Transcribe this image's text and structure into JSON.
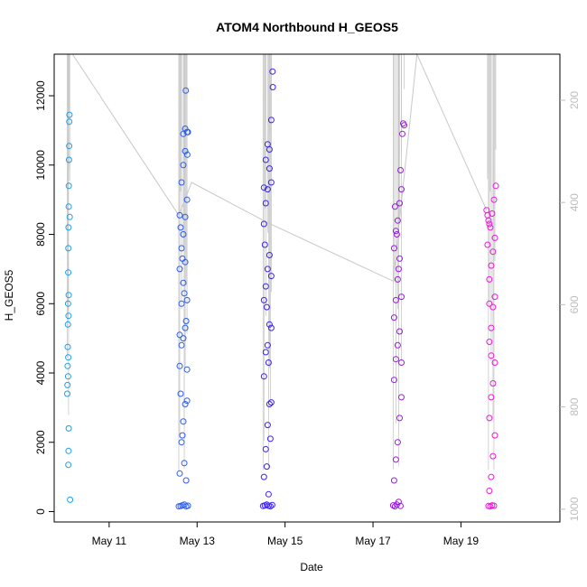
{
  "chart_data": {
    "type": "scatter",
    "title": "ATOM4 Northbound H_GEOS5",
    "xlabel": "Date",
    "ylabel": "H_GEOS5",
    "xlim": [
      "2018-05-09T18:00",
      "2018-05-21T06:00"
    ],
    "ylim": [
      -300,
      13200
    ],
    "x_ticks": [
      {
        "date": "2018-05-11",
        "label": "May 11"
      },
      {
        "date": "2018-05-13",
        "label": "May 13"
      },
      {
        "date": "2018-05-15",
        "label": "May 15"
      },
      {
        "date": "2018-05-17",
        "label": "May 17"
      },
      {
        "date": "2018-05-19",
        "label": "May 19"
      }
    ],
    "y_ticks": [
      0,
      2000,
      4000,
      6000,
      8000,
      10000,
      12000
    ],
    "right_axis": {
      "note": "secondary pressure axis drawn in light grey, reversed",
      "ticks": [
        200,
        400,
        600,
        800,
        1000
      ],
      "lim": [
        1025,
        110
      ],
      "color": "#bdbdbd"
    },
    "grid": false,
    "legend": "none",
    "line_color": "#c8c8c8",
    "color_gradient": [
      "#1fb4f0",
      "#1e55e8",
      "#3a10f0",
      "#a012e0",
      "#ff10d8"
    ],
    "flights": [
      {
        "color": "#1e9eea",
        "points": [
          [
            "2018-05-10T01:10",
            3400
          ],
          [
            "2018-05-10T01:15",
            3650
          ],
          [
            "2018-05-10T01:20",
            4200
          ],
          [
            "2018-05-10T01:25",
            4750
          ],
          [
            "2018-05-10T01:30",
            5400
          ],
          [
            "2018-05-10T01:35",
            6000
          ],
          [
            "2018-05-10T01:40",
            6900
          ],
          [
            "2018-05-10T01:45",
            7600
          ],
          [
            "2018-05-10T01:50",
            8200
          ],
          [
            "2018-05-10T01:55",
            8800
          ],
          [
            "2018-05-10T02:00",
            9400
          ],
          [
            "2018-05-10T02:05",
            10150
          ],
          [
            "2018-05-10T02:10",
            10550
          ],
          [
            "2018-05-10T02:15",
            11250
          ],
          [
            "2018-05-10T02:20",
            11450
          ],
          [
            "2018-05-10T02:30",
            8500
          ],
          [
            "2018-05-10T02:40",
            340
          ],
          [
            "2018-05-10T01:45",
            1350
          ],
          [
            "2018-05-10T01:50",
            1750
          ],
          [
            "2018-05-10T01:55",
            2400
          ],
          [
            "2018-05-10T01:35",
            3900
          ],
          [
            "2018-05-10T01:40",
            4450
          ],
          [
            "2018-05-10T01:50",
            5650
          ],
          [
            "2018-05-10T01:55",
            6250
          ]
        ]
      },
      {
        "color": "#2a5cf0",
        "points": [
          [
            "2018-05-12T14:00",
            150
          ],
          [
            "2018-05-12T15:00",
            160
          ],
          [
            "2018-05-12T16:00",
            180
          ],
          [
            "2018-05-12T17:00",
            200
          ],
          [
            "2018-05-12T18:00",
            150
          ],
          [
            "2018-05-12T19:00",
            170
          ],
          [
            "2018-05-12T14:30",
            1100
          ],
          [
            "2018-05-12T15:30",
            2000
          ],
          [
            "2018-05-12T16:30",
            2600
          ],
          [
            "2018-05-12T17:30",
            3100
          ],
          [
            "2018-05-12T18:30",
            3200
          ],
          [
            "2018-05-12T14:30",
            4200
          ],
          [
            "2018-05-12T15:30",
            4800
          ],
          [
            "2018-05-12T16:30",
            5000
          ],
          [
            "2018-05-12T17:30",
            5300
          ],
          [
            "2018-05-12T18:30",
            4100
          ],
          [
            "2018-05-12T14:30",
            5100
          ],
          [
            "2018-05-12T15:30",
            6000
          ],
          [
            "2018-05-12T16:30",
            6600
          ],
          [
            "2018-05-12T17:30",
            7200
          ],
          [
            "2018-05-12T18:30",
            6100
          ],
          [
            "2018-05-12T14:30",
            7000
          ],
          [
            "2018-05-12T15:30",
            7600
          ],
          [
            "2018-05-12T16:30",
            8000
          ],
          [
            "2018-05-12T17:30",
            8500
          ],
          [
            "2018-05-12T18:30",
            9000
          ],
          [
            "2018-05-12T14:30",
            8550
          ],
          [
            "2018-05-12T15:30",
            9500
          ],
          [
            "2018-05-12T16:30",
            10000
          ],
          [
            "2018-05-12T17:30",
            10400
          ],
          [
            "2018-05-12T18:30",
            10950
          ],
          [
            "2018-05-12T16:30",
            10900
          ],
          [
            "2018-05-12T17:30",
            11050
          ],
          [
            "2018-05-12T17:50",
            12150
          ],
          [
            "2018-05-12T18:40",
            10300
          ],
          [
            "2018-05-12T19:00",
            10950
          ],
          [
            "2018-05-12T15:00",
            8200
          ],
          [
            "2018-05-12T16:00",
            7300
          ],
          [
            "2018-05-12T17:00",
            6300
          ],
          [
            "2018-05-12T18:00",
            5500
          ],
          [
            "2018-05-12T15:00",
            3400
          ],
          [
            "2018-05-12T16:00",
            2200
          ],
          [
            "2018-05-12T17:00",
            1400
          ],
          [
            "2018-05-12T18:00",
            900
          ]
        ]
      },
      {
        "color": "#3b22f2",
        "points": [
          [
            "2018-05-14T12:00",
            160
          ],
          [
            "2018-05-14T13:00",
            180
          ],
          [
            "2018-05-14T14:00",
            200
          ],
          [
            "2018-05-14T15:00",
            170
          ],
          [
            "2018-05-14T16:00",
            150
          ],
          [
            "2018-05-14T17:00",
            190
          ],
          [
            "2018-05-14T12:30",
            1000
          ],
          [
            "2018-05-14T13:30",
            1800
          ],
          [
            "2018-05-14T14:30",
            2500
          ],
          [
            "2018-05-14T15:30",
            3100
          ],
          [
            "2018-05-14T16:30",
            3150
          ],
          [
            "2018-05-14T12:30",
            3900
          ],
          [
            "2018-05-14T13:30",
            4600
          ],
          [
            "2018-05-14T14:30",
            4800
          ],
          [
            "2018-05-14T15:30",
            5400
          ],
          [
            "2018-05-14T16:30",
            5300
          ],
          [
            "2018-05-14T12:30",
            6100
          ],
          [
            "2018-05-14T13:30",
            6500
          ],
          [
            "2018-05-14T14:30",
            7000
          ],
          [
            "2018-05-14T15:30",
            7400
          ],
          [
            "2018-05-14T16:30",
            6800
          ],
          [
            "2018-05-14T12:30",
            8300
          ],
          [
            "2018-05-14T13:30",
            8900
          ],
          [
            "2018-05-14T14:30",
            9300
          ],
          [
            "2018-05-14T15:30",
            9900
          ],
          [
            "2018-05-14T16:30",
            9500
          ],
          [
            "2018-05-14T12:30",
            9350
          ],
          [
            "2018-05-14T13:30",
            10150
          ],
          [
            "2018-05-14T14:30",
            10600
          ],
          [
            "2018-05-14T15:30",
            10450
          ],
          [
            "2018-05-14T16:30",
            11300
          ],
          [
            "2018-05-14T17:10",
            12700
          ],
          [
            "2018-05-14T17:20",
            12250
          ],
          [
            "2018-05-14T13:00",
            7700
          ],
          [
            "2018-05-14T14:00",
            5900
          ],
          [
            "2018-05-14T15:00",
            4300
          ],
          [
            "2018-05-14T16:00",
            2100
          ],
          [
            "2018-05-14T14:00",
            1300
          ],
          [
            "2018-05-14T15:00",
            500
          ]
        ]
      },
      {
        "color": "#9a18e6",
        "points": [
          [
            "2018-05-17T11:00",
            180
          ],
          [
            "2018-05-17T12:00",
            150
          ],
          [
            "2018-05-17T13:00",
            200
          ],
          [
            "2018-05-17T14:00",
            280
          ],
          [
            "2018-05-17T15:00",
            160
          ],
          [
            "2018-05-17T11:30",
            900
          ],
          [
            "2018-05-17T12:30",
            1500
          ],
          [
            "2018-05-17T13:30",
            2000
          ],
          [
            "2018-05-17T14:30",
            2700
          ],
          [
            "2018-05-17T15:30",
            3300
          ],
          [
            "2018-05-17T11:30",
            3800
          ],
          [
            "2018-05-17T12:30",
            4400
          ],
          [
            "2018-05-17T13:30",
            4800
          ],
          [
            "2018-05-17T14:30",
            5200
          ],
          [
            "2018-05-17T15:30",
            4300
          ],
          [
            "2018-05-17T11:30",
            5600
          ],
          [
            "2018-05-17T12:30",
            6100
          ],
          [
            "2018-05-17T13:30",
            6700
          ],
          [
            "2018-05-17T14:30",
            7300
          ],
          [
            "2018-05-17T15:30",
            6200
          ],
          [
            "2018-05-17T11:30",
            7600
          ],
          [
            "2018-05-17T12:30",
            8100
          ],
          [
            "2018-05-17T13:30",
            8400
          ],
          [
            "2018-05-17T14:30",
            8900
          ],
          [
            "2018-05-17T15:30",
            9300
          ],
          [
            "2018-05-17T16:00",
            10900
          ],
          [
            "2018-05-17T16:30",
            11200
          ],
          [
            "2018-05-17T17:00",
            11150
          ],
          [
            "2018-05-17T12:00",
            8800
          ],
          [
            "2018-05-17T13:00",
            8000
          ],
          [
            "2018-05-17T14:00",
            7000
          ],
          [
            "2018-05-17T15:00",
            9850
          ]
        ]
      },
      {
        "color": "#ee18dc",
        "points": [
          [
            "2018-05-19T15:00",
            160
          ],
          [
            "2018-05-19T16:00",
            150
          ],
          [
            "2018-05-19T17:00",
            180
          ],
          [
            "2018-05-19T18:00",
            170
          ],
          [
            "2018-05-19T15:30",
            600
          ],
          [
            "2018-05-19T16:30",
            1000
          ],
          [
            "2018-05-19T17:30",
            1600
          ],
          [
            "2018-05-19T18:30",
            2200
          ],
          [
            "2018-05-19T15:30",
            2700
          ],
          [
            "2018-05-19T16:30",
            3300
          ],
          [
            "2018-05-19T17:30",
            3700
          ],
          [
            "2018-05-19T18:30",
            4300
          ],
          [
            "2018-05-19T15:30",
            4900
          ],
          [
            "2018-05-19T16:30",
            5300
          ],
          [
            "2018-05-19T17:30",
            5900
          ],
          [
            "2018-05-19T18:30",
            6200
          ],
          [
            "2018-05-19T15:30",
            6700
          ],
          [
            "2018-05-19T16:30",
            7100
          ],
          [
            "2018-05-19T17:30",
            7500
          ],
          [
            "2018-05-19T18:30",
            7900
          ],
          [
            "2018-05-19T14:00",
            8700
          ],
          [
            "2018-05-19T14:30",
            8550
          ],
          [
            "2018-05-19T15:00",
            8400
          ],
          [
            "2018-05-19T15:30",
            8300
          ],
          [
            "2018-05-19T16:00",
            8200
          ],
          [
            "2018-05-19T17:00",
            8600
          ],
          [
            "2018-05-19T18:00",
            9000
          ],
          [
            "2018-05-19T19:00",
            9400
          ],
          [
            "2018-05-19T14:30",
            7700
          ],
          [
            "2018-05-19T15:30",
            6000
          ],
          [
            "2018-05-19T16:30",
            4500
          ]
        ]
      }
    ],
    "connector_line": [
      [
        "2018-05-10T04:00",
        13200
      ],
      [
        "2018-05-12T14:00",
        8550
      ],
      [
        "2018-05-12T21:00",
        9500
      ],
      [
        "2018-05-14T14:00",
        8350
      ],
      [
        "2018-05-17T11:00",
        6650
      ],
      [
        "2018-05-18T00:00",
        13200
      ],
      [
        "2018-05-19T14:00",
        8700
      ]
    ]
  }
}
